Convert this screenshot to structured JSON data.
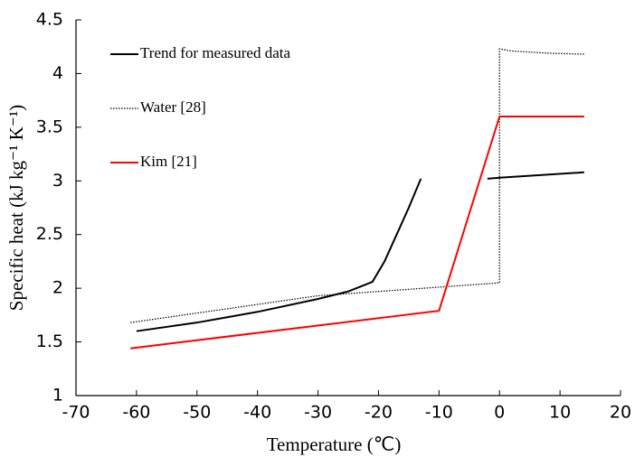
{
  "chart_data": {
    "type": "line",
    "xlabel": "Temperature (℃)",
    "ylabel": "Specific heat (kJ kg⁻¹ K⁻¹)",
    "xlim": [
      -70,
      20
    ],
    "xticks": [
      -70,
      -60,
      -50,
      -40,
      -30,
      -20,
      -10,
      0,
      10,
      20
    ],
    "ylim": [
      1,
      4.5
    ],
    "yticks": [
      1,
      1.5,
      2,
      2.5,
      3,
      3.5,
      4,
      4.5
    ],
    "legend": "upper left",
    "series": [
      {
        "name": "Trend for measured data",
        "color": "#000000",
        "style": "solid",
        "x": [
          -60,
          -50,
          -40,
          -30,
          -25,
          -21,
          -19,
          -17,
          -15,
          -13,
          null,
          -2,
          0,
          14
        ],
        "values": [
          1.6,
          1.68,
          1.78,
          1.9,
          1.97,
          2.06,
          2.25,
          2.5,
          2.75,
          3.02,
          null,
          3.02,
          3.03,
          3.08
        ]
      },
      {
        "name": "Water [28]",
        "color": "#000000",
        "style": "dotted",
        "x": [
          -61,
          -30,
          0,
          0,
          2,
          8,
          14
        ],
        "values": [
          1.68,
          1.93,
          2.05,
          4.23,
          4.21,
          4.19,
          4.18
        ]
      },
      {
        "name": "Kim [21]",
        "color": "#ff0000",
        "style": "solid",
        "x": [
          -61,
          -10,
          0,
          14
        ],
        "values": [
          1.44,
          1.79,
          3.6,
          3.6
        ]
      }
    ]
  }
}
